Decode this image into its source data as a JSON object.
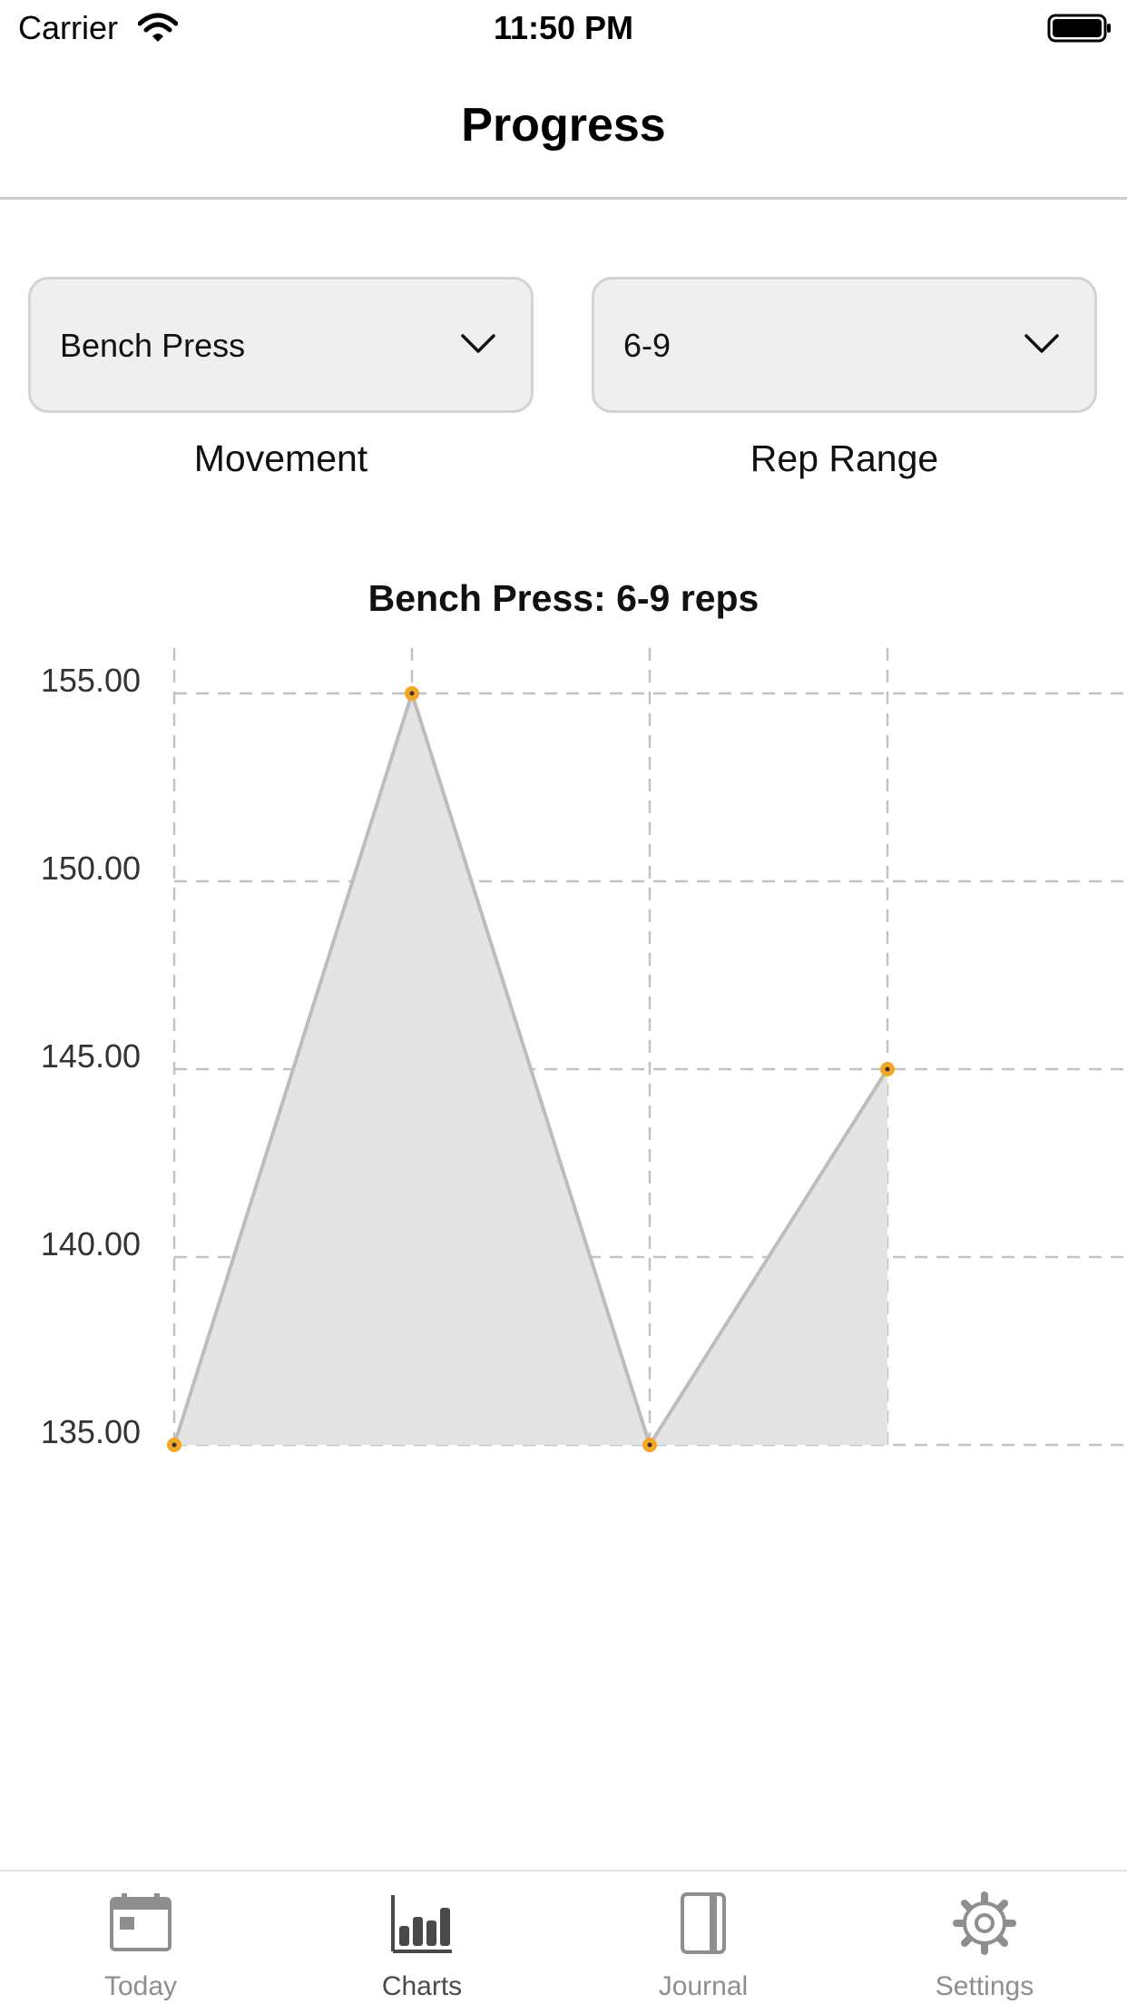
{
  "status_bar": {
    "carrier": "Carrier",
    "time": "11:50 PM"
  },
  "nav": {
    "title": "Progress"
  },
  "pickers": {
    "movement": {
      "value": "Bench Press",
      "caption": "Movement"
    },
    "rep_range": {
      "value": "6-9",
      "caption": "Rep Range"
    }
  },
  "chart_data": {
    "type": "area",
    "title": "Bench Press: 6-9 reps",
    "xlabel": "",
    "ylabel": "",
    "x": [
      0,
      1,
      2,
      3
    ],
    "values": [
      135,
      155,
      135,
      145
    ],
    "ylim": [
      135,
      155
    ],
    "y_ticks": [
      "135.00",
      "140.00",
      "145.00",
      "150.00",
      "155.00"
    ],
    "grid": true,
    "line_color": "#bdbdbd",
    "fill_color": "#e4e4e4",
    "marker_color": "#f5a623"
  },
  "tabs": [
    {
      "label": "Today",
      "icon": "calendar-icon",
      "active": false
    },
    {
      "label": "Charts",
      "icon": "bar-chart-icon",
      "active": true
    },
    {
      "label": "Journal",
      "icon": "journal-icon",
      "active": false
    },
    {
      "label": "Settings",
      "icon": "gear-icon",
      "active": false
    }
  ]
}
